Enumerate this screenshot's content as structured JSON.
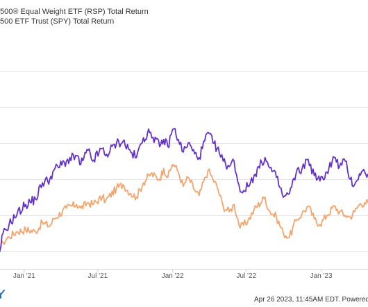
{
  "legend": {
    "series1_label": "500® Equal Weight ETF (RSP) Total Return",
    "series2_label": "500 ETF Trust (SPY) Total Return"
  },
  "footer": {
    "text": "Apr 26 2023, 11:45AM EDT. Powered"
  },
  "colors": {
    "rsp": "#6232c8",
    "spy": "#f5a46c",
    "grid": "#e3e3e3",
    "axis": "#cfcfcf"
  },
  "chart_data": {
    "type": "line",
    "x_tick_labels": [
      "Jan '21",
      "Jul '21",
      "Jan '22",
      "Jul '22",
      "Jan '23"
    ],
    "x_tick_dates": [
      "2021-01-01",
      "2021-07-01",
      "2022-01-01",
      "2022-07-01",
      "2023-01-01"
    ],
    "xlim": [
      "2020-10-20",
      "2023-04-26"
    ],
    "ylim": [
      -10,
      120
    ],
    "gridlines_y": [
      0,
      20,
      40,
      60,
      80,
      100
    ],
    "grid": true,
    "series": [
      {
        "name": "500® Equal Weight ETF (RSP) Total Return",
        "points": [
          [
            "2020-10-20",
            2
          ],
          [
            "2020-10-30",
            -1
          ],
          [
            "2020-11-05",
            3
          ],
          [
            "2020-11-10",
            10
          ],
          [
            "2020-11-25",
            15
          ],
          [
            "2020-12-15",
            21
          ],
          [
            "2021-01-05",
            26
          ],
          [
            "2021-01-29",
            29
          ],
          [
            "2021-02-15",
            38
          ],
          [
            "2021-03-05",
            40
          ],
          [
            "2021-03-15",
            45
          ],
          [
            "2021-04-15",
            50
          ],
          [
            "2021-05-10",
            53
          ],
          [
            "2021-05-20",
            48
          ],
          [
            "2021-06-07",
            56
          ],
          [
            "2021-06-18",
            50
          ],
          [
            "2021-07-12",
            57
          ],
          [
            "2021-07-20",
            53
          ],
          [
            "2021-08-16",
            60
          ],
          [
            "2021-09-01",
            61
          ],
          [
            "2021-09-20",
            55
          ],
          [
            "2021-10-04",
            52
          ],
          [
            "2021-10-21",
            63
          ],
          [
            "2021-11-08",
            66
          ],
          [
            "2021-11-30",
            58
          ],
          [
            "2021-12-10",
            62
          ],
          [
            "2021-12-20",
            58
          ],
          [
            "2021-12-31",
            67
          ],
          [
            "2022-01-04",
            68
          ],
          [
            "2022-01-15",
            62
          ],
          [
            "2022-01-27",
            55
          ],
          [
            "2022-02-08",
            60
          ],
          [
            "2022-02-24",
            54
          ],
          [
            "2022-03-07",
            52
          ],
          [
            "2022-03-29",
            66
          ],
          [
            "2022-04-10",
            60
          ],
          [
            "2022-04-20",
            57
          ],
          [
            "2022-05-05",
            50
          ],
          [
            "2022-05-20",
            47
          ],
          [
            "2022-06-01",
            50
          ],
          [
            "2022-06-16",
            33
          ],
          [
            "2022-07-05",
            36
          ],
          [
            "2022-07-20",
            42
          ],
          [
            "2022-08-16",
            52
          ],
          [
            "2022-08-25",
            47
          ],
          [
            "2022-09-13",
            41
          ],
          [
            "2022-09-30",
            30
          ],
          [
            "2022-10-15",
            32
          ],
          [
            "2022-10-31",
            43
          ],
          [
            "2022-11-15",
            46
          ],
          [
            "2022-11-30",
            51
          ],
          [
            "2022-12-15",
            42
          ],
          [
            "2022-12-29",
            39
          ],
          [
            "2023-01-15",
            44
          ],
          [
            "2023-02-02",
            52
          ],
          [
            "2023-02-15",
            47
          ],
          [
            "2023-03-01",
            50
          ],
          [
            "2023-03-13",
            40
          ],
          [
            "2023-03-24",
            37
          ],
          [
            "2023-04-05",
            43
          ],
          [
            "2023-04-18",
            44
          ],
          [
            "2023-04-26",
            43
          ]
        ]
      },
      {
        "name": "500 ETF Trust (SPY) Total Return",
        "points": [
          [
            "2020-10-20",
            1
          ],
          [
            "2020-10-30",
            -2
          ],
          [
            "2020-11-05",
            3
          ],
          [
            "2020-11-10",
            5
          ],
          [
            "2020-11-25",
            8
          ],
          [
            "2020-12-15",
            11
          ],
          [
            "2021-01-05",
            12
          ],
          [
            "2021-01-29",
            11
          ],
          [
            "2021-02-15",
            16
          ],
          [
            "2021-03-05",
            14
          ],
          [
            "2021-03-15",
            18
          ],
          [
            "2021-04-15",
            24
          ],
          [
            "2021-05-10",
            26
          ],
          [
            "2021-05-20",
            24
          ],
          [
            "2021-06-07",
            27
          ],
          [
            "2021-06-18",
            26
          ],
          [
            "2021-07-12",
            30
          ],
          [
            "2021-07-20",
            28
          ],
          [
            "2021-08-16",
            35
          ],
          [
            "2021-09-01",
            37
          ],
          [
            "2021-09-20",
            32
          ],
          [
            "2021-10-04",
            30
          ],
          [
            "2021-10-21",
            38
          ],
          [
            "2021-11-08",
            43
          ],
          [
            "2021-11-30",
            40
          ],
          [
            "2021-12-10",
            46
          ],
          [
            "2021-12-20",
            41
          ],
          [
            "2021-12-31",
            48
          ],
          [
            "2022-01-04",
            48
          ],
          [
            "2022-01-15",
            44
          ],
          [
            "2022-01-27",
            36
          ],
          [
            "2022-02-08",
            41
          ],
          [
            "2022-02-24",
            34
          ],
          [
            "2022-03-07",
            31
          ],
          [
            "2022-03-29",
            45
          ],
          [
            "2022-04-10",
            40
          ],
          [
            "2022-04-20",
            36
          ],
          [
            "2022-05-05",
            25
          ],
          [
            "2022-05-20",
            22
          ],
          [
            "2022-06-01",
            26
          ],
          [
            "2022-06-16",
            13
          ],
          [
            "2022-07-05",
            17
          ],
          [
            "2022-07-20",
            23
          ],
          [
            "2022-08-16",
            30
          ],
          [
            "2022-08-25",
            23
          ],
          [
            "2022-09-13",
            19
          ],
          [
            "2022-09-30",
            10
          ],
          [
            "2022-10-15",
            8
          ],
          [
            "2022-10-31",
            17
          ],
          [
            "2022-11-15",
            21
          ],
          [
            "2022-11-30",
            25
          ],
          [
            "2022-12-15",
            18
          ],
          [
            "2022-12-29",
            15
          ],
          [
            "2023-01-15",
            20
          ],
          [
            "2023-02-02",
            25
          ],
          [
            "2023-02-15",
            22
          ],
          [
            "2023-03-01",
            20
          ],
          [
            "2023-03-13",
            19
          ],
          [
            "2023-03-24",
            22
          ],
          [
            "2023-04-05",
            26
          ],
          [
            "2023-04-18",
            27
          ],
          [
            "2023-04-26",
            27
          ]
        ]
      }
    ]
  }
}
